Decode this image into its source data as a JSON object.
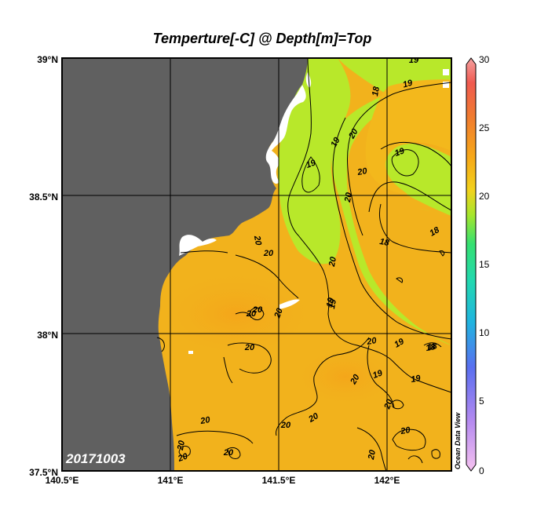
{
  "title": "Temperture[-C] @ Depth[m]=Top",
  "date": "20171003",
  "credit": "Ocean Data View",
  "map": {
    "lon_range": [
      140.5,
      142.3
    ],
    "lat_range": [
      37.5,
      39.0
    ],
    "lon_ticks": [
      "140.5°E",
      "141°E",
      "141.5°E",
      "142°E"
    ],
    "lat_ticks": [
      "39°N",
      "38.5°N",
      "38°N",
      "37.5°N"
    ],
    "land_color": "#606060",
    "sea_base_color": "#f2b21c",
    "cool_color": "#b8e82a"
  },
  "colorbar": {
    "ticks": [
      "30",
      "25",
      "20",
      "15",
      "10",
      "5",
      "0"
    ],
    "range": [
      0,
      30
    ],
    "colors": [
      "#f6c2f0",
      "#b58af0",
      "#5a6ff0",
      "#20b4e0",
      "#22d8b0",
      "#35e070",
      "#a6e62c",
      "#f2d21c",
      "#f6a818",
      "#f07a30",
      "#f05a50",
      "#f4a0a0"
    ]
  },
  "contour_labels": [
    "19",
    "18",
    "19",
    "20",
    "19",
    "19",
    "20",
    "20",
    "19",
    "18",
    "18",
    "20",
    "18",
    "20",
    "19",
    "20",
    "20",
    "20",
    "19",
    "20",
    "19",
    "18",
    "19",
    "20",
    "19",
    "20",
    "20",
    "20",
    "20",
    "20",
    "20",
    "20",
    "20",
    "20",
    "20",
    "20"
  ]
}
